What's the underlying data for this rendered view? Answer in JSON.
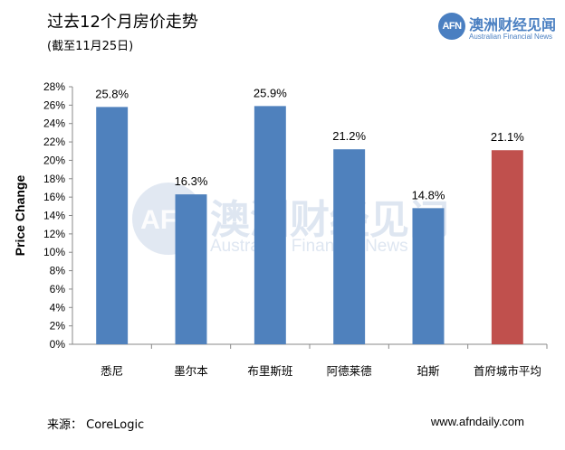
{
  "header": {
    "title": "过去12个月房价走势",
    "subtitle": "(截至11月25日)"
  },
  "logo": {
    "mark": "AFN",
    "name_cn": "澳洲财经见闻",
    "name_en": "Australian Financial News"
  },
  "watermark": {
    "mark": "AFN",
    "name_cn": "澳洲财经见闻",
    "name_en": "Australian Financial News"
  },
  "footer": {
    "source": "来源： CoreLogic",
    "website": "www.afndaily.com"
  },
  "colors": {
    "bar_default": "#4f81bd",
    "bar_highlight": "#c0504d",
    "accent": "#4a7fc1"
  },
  "chart_data": {
    "type": "bar",
    "title": "",
    "xlabel": "",
    "ylabel": "Price Change",
    "ylim": [
      0,
      28
    ],
    "ytick_step": 2,
    "ytick_format": "percent",
    "grid": false,
    "categories": [
      "悉尼",
      "墨尔本",
      "布里斯班",
      "阿德莱德",
      "珀斯",
      "首府城市平均"
    ],
    "values": [
      25.8,
      16.3,
      25.9,
      21.2,
      14.8,
      21.1
    ],
    "data_labels": [
      "25.8%",
      "16.3%",
      "25.9%",
      "21.2%",
      "14.8%",
      "21.1%"
    ],
    "highlight_index": 5
  }
}
